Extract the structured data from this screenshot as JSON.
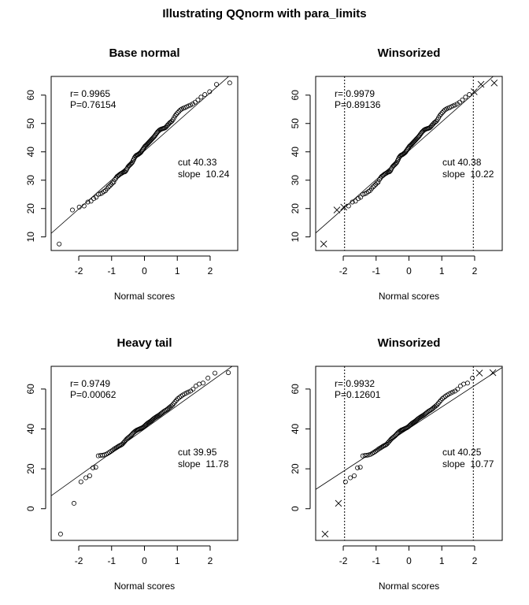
{
  "chart_data": {
    "title": "Illustrating QQnorm with para_limits",
    "samples": {
      "base": [
        7.5,
        19.5,
        20.5,
        20.9,
        22.3,
        22.6,
        23.5,
        24.0,
        25.0,
        25.2,
        25.5,
        26.0,
        26.3,
        27.0,
        27.6,
        28.0,
        28.5,
        29.0,
        29.3,
        30.2,
        30.8,
        31.3,
        31.6,
        31.9,
        32.2,
        32.4,
        32.6,
        32.8,
        32.9,
        33.0,
        33.4,
        34.0,
        34.6,
        35.0,
        35.3,
        35.6,
        35.9,
        36.2,
        36.8,
        37.4,
        38.0,
        38.4,
        38.7,
        38.9,
        39.0,
        39.2,
        39.4,
        39.6,
        39.9,
        40.3,
        40.7,
        41.1,
        41.5,
        41.9,
        42.2,
        42.4,
        42.7,
        43.0,
        43.3,
        43.6,
        43.9,
        44.2,
        44.5,
        44.8,
        45.1,
        45.4,
        45.8,
        46.2,
        46.6,
        47.0,
        47.3,
        47.6,
        47.8,
        48.0,
        48.1,
        48.2,
        48.3,
        48.4,
        48.6,
        49.0,
        49.4,
        49.8,
        50.2,
        50.5,
        50.8,
        51.3,
        52.0,
        52.7,
        53.3,
        53.8,
        54.3,
        54.8,
        55.1,
        55.4,
        55.6,
        55.9,
        56.2,
        56.5,
        56.9,
        57.5,
        58.3,
        59.3,
        60.2,
        61.2,
        63.8,
        64.3
      ],
      "heavy": [
        -12.7,
        2.7,
        13.5,
        15.5,
        16.5,
        20.5,
        20.8,
        26.5,
        26.7,
        26.8,
        27.0,
        27.3,
        27.8,
        28.3,
        28.8,
        29.3,
        29.8,
        30.2,
        30.6,
        31.0,
        31.4,
        31.7,
        32.0,
        32.4,
        33.0,
        33.6,
        34.2,
        34.8,
        35.3,
        35.7,
        36.1,
        36.5,
        37.0,
        37.5,
        38.0,
        38.4,
        38.8,
        39.1,
        39.4,
        39.6,
        39.8,
        40.0,
        40.2,
        40.4,
        40.6,
        40.9,
        41.2,
        41.6,
        42.0,
        42.4,
        42.8,
        43.1,
        43.4,
        43.7,
        44.0,
        44.4,
        44.8,
        45.2,
        45.5,
        45.8,
        46.1,
        46.4,
        46.7,
        47.0,
        47.4,
        47.8,
        48.2,
        48.6,
        49.0,
        49.3,
        49.6,
        50.0,
        50.5,
        51.0,
        51.5,
        52.0,
        52.8,
        53.6,
        54.4,
        55.2,
        55.8,
        56.4,
        57.0,
        57.5,
        58.0,
        58.5,
        59.0,
        60.0,
        61.5,
        62.5,
        63.0,
        65.5,
        68.0,
        68.2
      ]
    },
    "panels": [
      {
        "type": "scatter",
        "title": "Base normal",
        "sample": "base",
        "xlabel": "Normal scores",
        "ylabel": "",
        "xlim": [
          -2.84,
          2.84
        ],
        "ylim": [
          5.2,
          66.6
        ],
        "xticks": [
          -2,
          -1,
          0,
          1,
          2
        ],
        "yticks": [
          10,
          20,
          30,
          40,
          50,
          60
        ],
        "r_text": "r= 0.9965",
        "p_text": "P=0.76154",
        "cut_text": "cut 40.33",
        "slope_text": "slope  10.24",
        "cut": 40.33,
        "slope": 10.24,
        "limits": null
      },
      {
        "type": "scatter",
        "title": "Winsorized",
        "sample": "base",
        "xlabel": "Normal scores",
        "ylabel": "",
        "xlim": [
          -2.84,
          2.84
        ],
        "ylim": [
          5.2,
          66.6
        ],
        "xticks": [
          -2,
          -1,
          0,
          1,
          2
        ],
        "yticks": [
          10,
          20,
          30,
          40,
          50,
          60
        ],
        "r_text": "r= 0.9979",
        "p_text": "P=0.89136",
        "cut_text": "cut 40.38",
        "slope_text": "slope  10.22",
        "cut": 40.38,
        "slope": 10.22,
        "limits": [
          -1.96,
          1.96
        ]
      },
      {
        "type": "scatter",
        "title": "Heavy tail",
        "sample": "heavy",
        "xlabel": "Normal scores",
        "ylabel": "",
        "xlim": [
          -2.84,
          2.84
        ],
        "ylim": [
          -15.9,
          71.4
        ],
        "xticks": [
          -2,
          -1,
          0,
          1,
          2
        ],
        "yticks": [
          0,
          20,
          40,
          60
        ],
        "r_text": "r= 0.9749",
        "p_text": "P=0.00062",
        "cut_text": "cut 39.95",
        "slope_text": "slope  11.78",
        "cut": 39.95,
        "slope": 11.78,
        "limits": null
      },
      {
        "type": "scatter",
        "title": "Winsorized",
        "sample": "heavy",
        "xlabel": "Normal scores",
        "ylabel": "",
        "xlim": [
          -2.84,
          2.84
        ],
        "ylim": [
          -15.9,
          71.4
        ],
        "xticks": [
          -2,
          -1,
          0,
          1,
          2
        ],
        "yticks": [
          0,
          20,
          40,
          60
        ],
        "r_text": "r= 0.9932",
        "p_text": "P=0.12601",
        "cut_text": "cut 40.25",
        "slope_text": "slope  10.77",
        "cut": 40.25,
        "slope": 10.77,
        "limits": [
          -1.96,
          1.96
        ]
      }
    ],
    "grid": false,
    "markers": {
      "inside": "circle",
      "outside-limits": "cross"
    },
    "colors": {
      "points": "#000000",
      "line": "#000000"
    }
  }
}
